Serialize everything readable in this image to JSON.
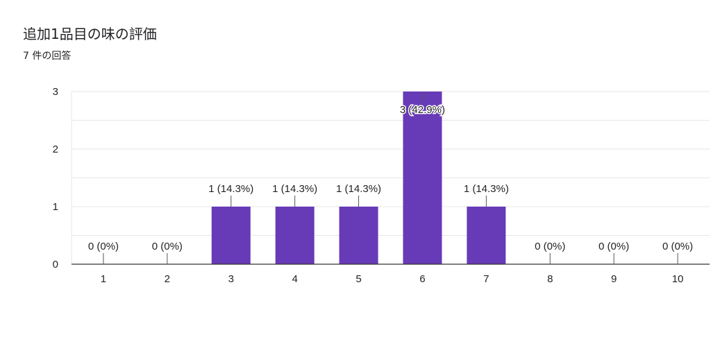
{
  "header": {
    "title": "追加1品目の味の評価",
    "response_count": "7 件の回答"
  },
  "colors": {
    "bar": "#673ab7",
    "grid": "#e6e6e6",
    "axis": "#333333"
  },
  "chart_data": {
    "type": "bar",
    "categories": [
      "1",
      "2",
      "3",
      "4",
      "5",
      "6",
      "7",
      "8",
      "9",
      "10"
    ],
    "values": [
      0,
      0,
      1,
      1,
      1,
      3,
      1,
      0,
      0,
      0
    ],
    "data_labels": [
      "0 (0%)",
      "0 (0%)",
      "1 (14.3%)",
      "1 (14.3%)",
      "1 (14.3%)",
      "3 (42.9%)",
      "1 (14.3%)",
      "0 (0%)",
      "0 (0%)",
      "0 (0%)"
    ],
    "y_ticks": [
      "0",
      "1",
      "2",
      "3"
    ],
    "ylim": [
      0,
      3
    ],
    "grid": true
  }
}
